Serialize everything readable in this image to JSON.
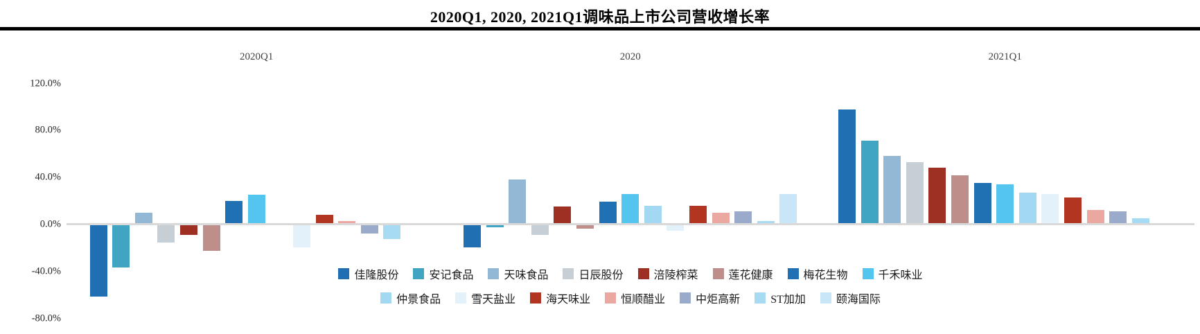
{
  "chart_data": {
    "type": "bar",
    "title": "2020Q1, 2020, 2021Q1调味品上市公司营收增长率",
    "ylabel": "",
    "ylim": [
      -80,
      120
    ],
    "grid": false,
    "legend_position": "bottom-center-two-rows",
    "y_ticks": [
      {
        "label": "120.0%",
        "value": 120
      },
      {
        "label": "80.0%",
        "value": 80
      },
      {
        "label": "40.0%",
        "value": 40
      },
      {
        "label": "0.0%",
        "value": 0
      },
      {
        "label": "-40.0%",
        "value": -40
      },
      {
        "label": "-80.0%",
        "value": -80
      }
    ],
    "groups": [
      "2020Q1",
      "2020",
      "2021Q1"
    ],
    "companies": [
      {
        "name": "佳隆股份",
        "color": "#1F6FB2"
      },
      {
        "name": "安记食品",
        "color": "#3FA5C3"
      },
      {
        "name": "天味食品",
        "color": "#93B8D6"
      },
      {
        "name": "日辰股份",
        "color": "#C6CED6"
      },
      {
        "name": "涪陵榨菜",
        "color": "#9E3023"
      },
      {
        "name": "莲花健康",
        "color": "#BE8E8A"
      },
      {
        "name": "梅花生物",
        "color": "#2070B4"
      },
      {
        "name": "千禾味业",
        "color": "#54C5EE"
      },
      {
        "name": "仲景食品",
        "color": "#A3D8F2"
      },
      {
        "name": "雪天盐业",
        "color": "#E3F1FB"
      },
      {
        "name": "海天味业",
        "color": "#B23522"
      },
      {
        "name": "恒顺醋业",
        "color": "#EAA8A1"
      },
      {
        "name": "中炬高新",
        "color": "#9AAACB"
      },
      {
        "name": "ST加加",
        "color": "#A7DAF3"
      },
      {
        "name": "颐海国际",
        "color": "#C9E5F8"
      }
    ],
    "series": [
      {
        "group": "2020Q1",
        "values": [
          -61,
          -36,
          9,
          -15,
          -8,
          -22,
          19,
          24,
          0,
          -19,
          7,
          2,
          -7,
          -12,
          0
        ]
      },
      {
        "group": "2020",
        "values": [
          -19,
          -2,
          37,
          -8,
          14,
          -3,
          18,
          25,
          15,
          -5,
          15,
          9,
          10,
          2,
          25
        ]
      },
      {
        "group": "2021Q1",
        "values": [
          97,
          70,
          57,
          52,
          47,
          41,
          34,
          33,
          26,
          25,
          22,
          11,
          10,
          4,
          0
        ]
      }
    ],
    "legend_rows": [
      [
        0,
        1,
        2,
        3,
        4,
        5,
        6,
        7
      ],
      [
        8,
        9,
        10,
        11,
        12,
        13,
        14
      ]
    ]
  }
}
